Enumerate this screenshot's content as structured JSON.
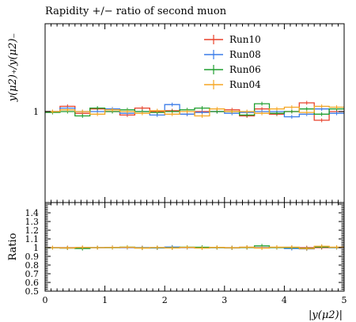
{
  "chart_data": [
    {
      "panel": "main",
      "type": "line",
      "title": "Rapidity +/− ratio of second muon",
      "ylabel": "y(μ2)₊/y(μ2)₋",
      "xlim": [
        0,
        5
      ],
      "y_ticks_labeled": [
        "1"
      ],
      "legend_position": "top-right",
      "x_edges": [
        0,
        0.25,
        0.5,
        0.75,
        1,
        1.25,
        1.5,
        1.75,
        2,
        2.25,
        2.5,
        2.75,
        3,
        3.25,
        3.5,
        3.75,
        4,
        4.25,
        4.5,
        4.75,
        5
      ],
      "series": [
        {
          "name": "Run10",
          "color": "#e8412a",
          "values": [
            1.0,
            1.006,
            0.998,
            1.003,
            1.0,
            0.996,
            1.004,
            1.0,
            1.001,
            0.997,
            1.0,
            1.0,
            1.002,
            0.995,
            1.003,
            0.997,
            1.0,
            1.01,
            0.99,
            1.0
          ]
        },
        {
          "name": "Run08",
          "color": "#3a7be8",
          "values": [
            1.0,
            1.004,
            1.0,
            1.0,
            1.003,
            0.998,
            1.0,
            0.996,
            1.008,
            0.997,
            0.999,
            1.0,
            0.998,
            0.999,
            1.0,
            1.0,
            0.994,
            0.997,
            1.003,
            0.998
          ]
        },
        {
          "name": "Run06",
          "color": "#1e9e2e",
          "values": [
            0.999,
            1.0,
            0.995,
            1.004,
            1.0,
            1.002,
            1.0,
            0.999,
            1.0,
            1.002,
            1.004,
            1.0,
            1.0,
            0.996,
            1.009,
            0.998,
            1.0,
            1.003,
            0.997,
            1.003
          ]
        },
        {
          "name": "Run04",
          "color": "#f5a623",
          "values": [
            1.0,
            1.002,
            1.0,
            0.997,
            1.002,
            1.0,
            0.998,
            1.001,
            0.997,
            1.0,
            0.995,
            1.003,
            1.0,
            1.0,
            0.998,
            1.003,
            1.005,
            0.999,
            1.006,
            1.005
          ]
        }
      ]
    },
    {
      "panel": "ratio",
      "type": "line",
      "ylabel": "Ratio",
      "xlabel": "|y(μ2)|",
      "xlim": [
        0,
        5
      ],
      "ylim": [
        0.5,
        1.5
      ],
      "x_ticks": [
        "0",
        "1",
        "2",
        "3",
        "4",
        "5"
      ],
      "y_ticks": [
        "0.5",
        "0.6",
        "0.7",
        "0.8",
        "0.9",
        "1",
        "1.1",
        "1.2",
        "1.3",
        "1.4"
      ],
      "x_edges": [
        0,
        0.25,
        0.5,
        0.75,
        1,
        1.25,
        1.5,
        1.75,
        2,
        2.25,
        2.5,
        2.75,
        3,
        3.25,
        3.5,
        3.75,
        4,
        4.25,
        4.5,
        4.75,
        5
      ],
      "series": [
        {
          "name": "Run10",
          "color": "#e8412a",
          "values": [
            1,
            1,
            1,
            1,
            1,
            1,
            1,
            1,
            1,
            1,
            1,
            1,
            1,
            1,
            1,
            1,
            1,
            1,
            1,
            1
          ]
        },
        {
          "name": "Run08",
          "color": "#3a7be8",
          "values": [
            1.0,
            0.995,
            0.992,
            1.0,
            1.003,
            1.0,
            0.997,
            0.996,
            1.007,
            1.0,
            0.999,
            1.0,
            0.996,
            1.004,
            0.997,
            1.003,
            0.99,
            0.985,
            1.012,
            1.0
          ]
        },
        {
          "name": "Run06",
          "color": "#1e9e2e",
          "values": [
            0.999,
            0.996,
            0.99,
            1.0,
            1.0,
            1.006,
            0.996,
            0.999,
            0.999,
            1.005,
            1.004,
            1.0,
            0.998,
            1.001,
            1.02,
            1.001,
            1.0,
            0.993,
            1.007,
            1.003
          ]
        },
        {
          "name": "Run04",
          "color": "#f5a623",
          "values": [
            1.0,
            0.996,
            1.002,
            1.0,
            1.002,
            1.004,
            0.994,
            1.001,
            0.996,
            1.003,
            0.995,
            1.003,
            0.998,
            1.005,
            0.995,
            1.006,
            1.005,
            0.989,
            1.016,
            1.005
          ]
        }
      ]
    }
  ]
}
